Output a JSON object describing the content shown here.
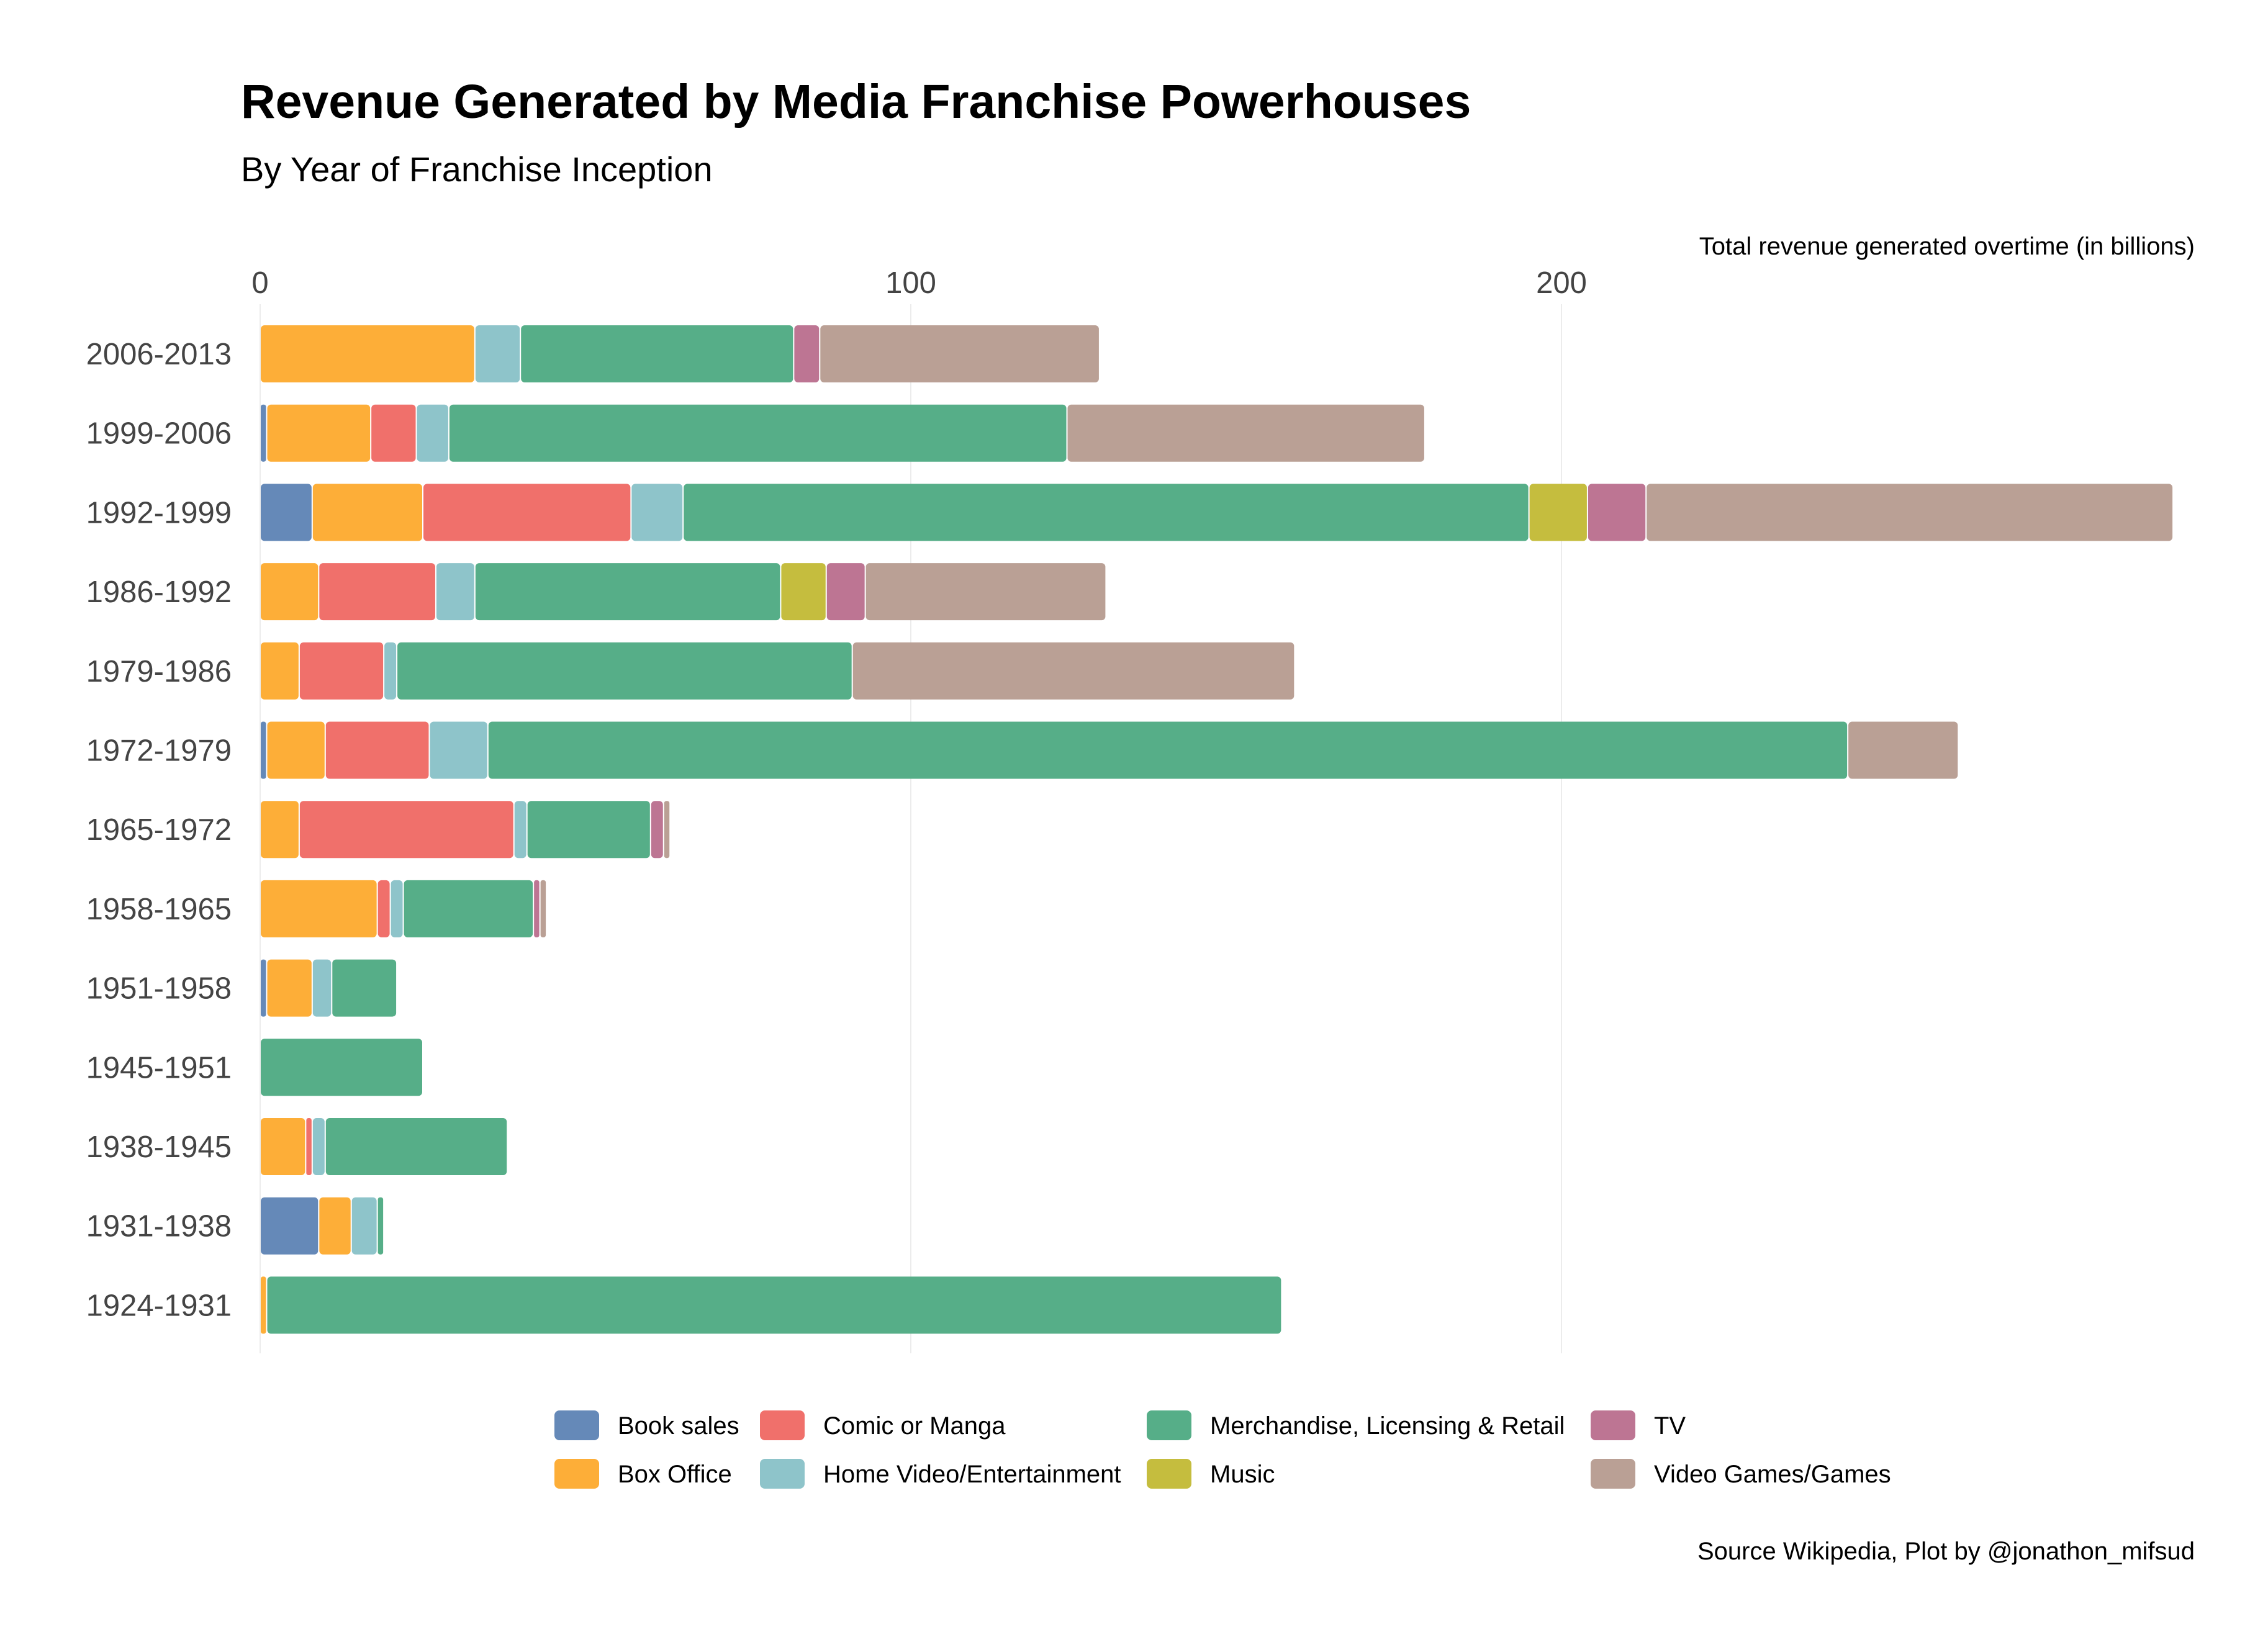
{
  "chart_data": {
    "type": "bar",
    "orientation": "horizontal",
    "stacked": true,
    "title": "Revenue Generated by Media Franchise Powerhouses",
    "subtitle": "By Year of Franchise Inception",
    "xlabel": "Total revenue generated overtime (in billions)",
    "caption": "Source Wikipedia, Plot by @jonathon_mifsud",
    "xlim": [
      0,
      300
    ],
    "xticks": [
      0,
      100,
      200
    ],
    "grid": true,
    "legend_position": "bottom",
    "categories": [
      "2006-2013",
      "1999-2006",
      "1992-1999",
      "1986-1992",
      "1979-1986",
      "1972-1979",
      "1965-1972",
      "1958-1965",
      "1951-1958",
      "1945-1951",
      "1938-1945",
      "1931-1938",
      "1924-1931"
    ],
    "series": [
      {
        "name": "Book sales",
        "color": "#6589b8",
        "values": [
          0,
          1,
          8,
          0,
          0,
          1,
          0,
          0,
          1,
          0,
          0,
          9,
          0
        ]
      },
      {
        "name": "Box Office",
        "color": "#fdae38",
        "values": [
          33,
          16,
          17,
          9,
          6,
          9,
          6,
          18,
          7,
          0,
          7,
          5,
          1
        ]
      },
      {
        "name": "Comic or Manga",
        "color": "#f0706b",
        "values": [
          0,
          7,
          32,
          18,
          13,
          16,
          33,
          2,
          0,
          0,
          1,
          0,
          0
        ]
      },
      {
        "name": "Home Video/Entertainment",
        "color": "#8ec4ca",
        "values": [
          7,
          5,
          8,
          6,
          2,
          9,
          2,
          2,
          3,
          0,
          2,
          4,
          0
        ]
      },
      {
        "name": "Merchandise, Licensing & Retail",
        "color": "#56ae88",
        "values": [
          42,
          95,
          130,
          47,
          70,
          209,
          19,
          20,
          10,
          25,
          28,
          1,
          156
        ]
      },
      {
        "name": "Music",
        "color": "#c5bd3e",
        "values": [
          0,
          0,
          9,
          7,
          0,
          0,
          0,
          0,
          0,
          0,
          0,
          0,
          0
        ]
      },
      {
        "name": "TV",
        "color": "#bd7593",
        "values": [
          4,
          0,
          9,
          6,
          0,
          0,
          2,
          1,
          0,
          0,
          0,
          0,
          0
        ]
      },
      {
        "name": "Video Games/Games",
        "color": "#baa095",
        "values": [
          43,
          55,
          81,
          37,
          68,
          17,
          1,
          1,
          0,
          0,
          0,
          0,
          0
        ]
      }
    ]
  }
}
